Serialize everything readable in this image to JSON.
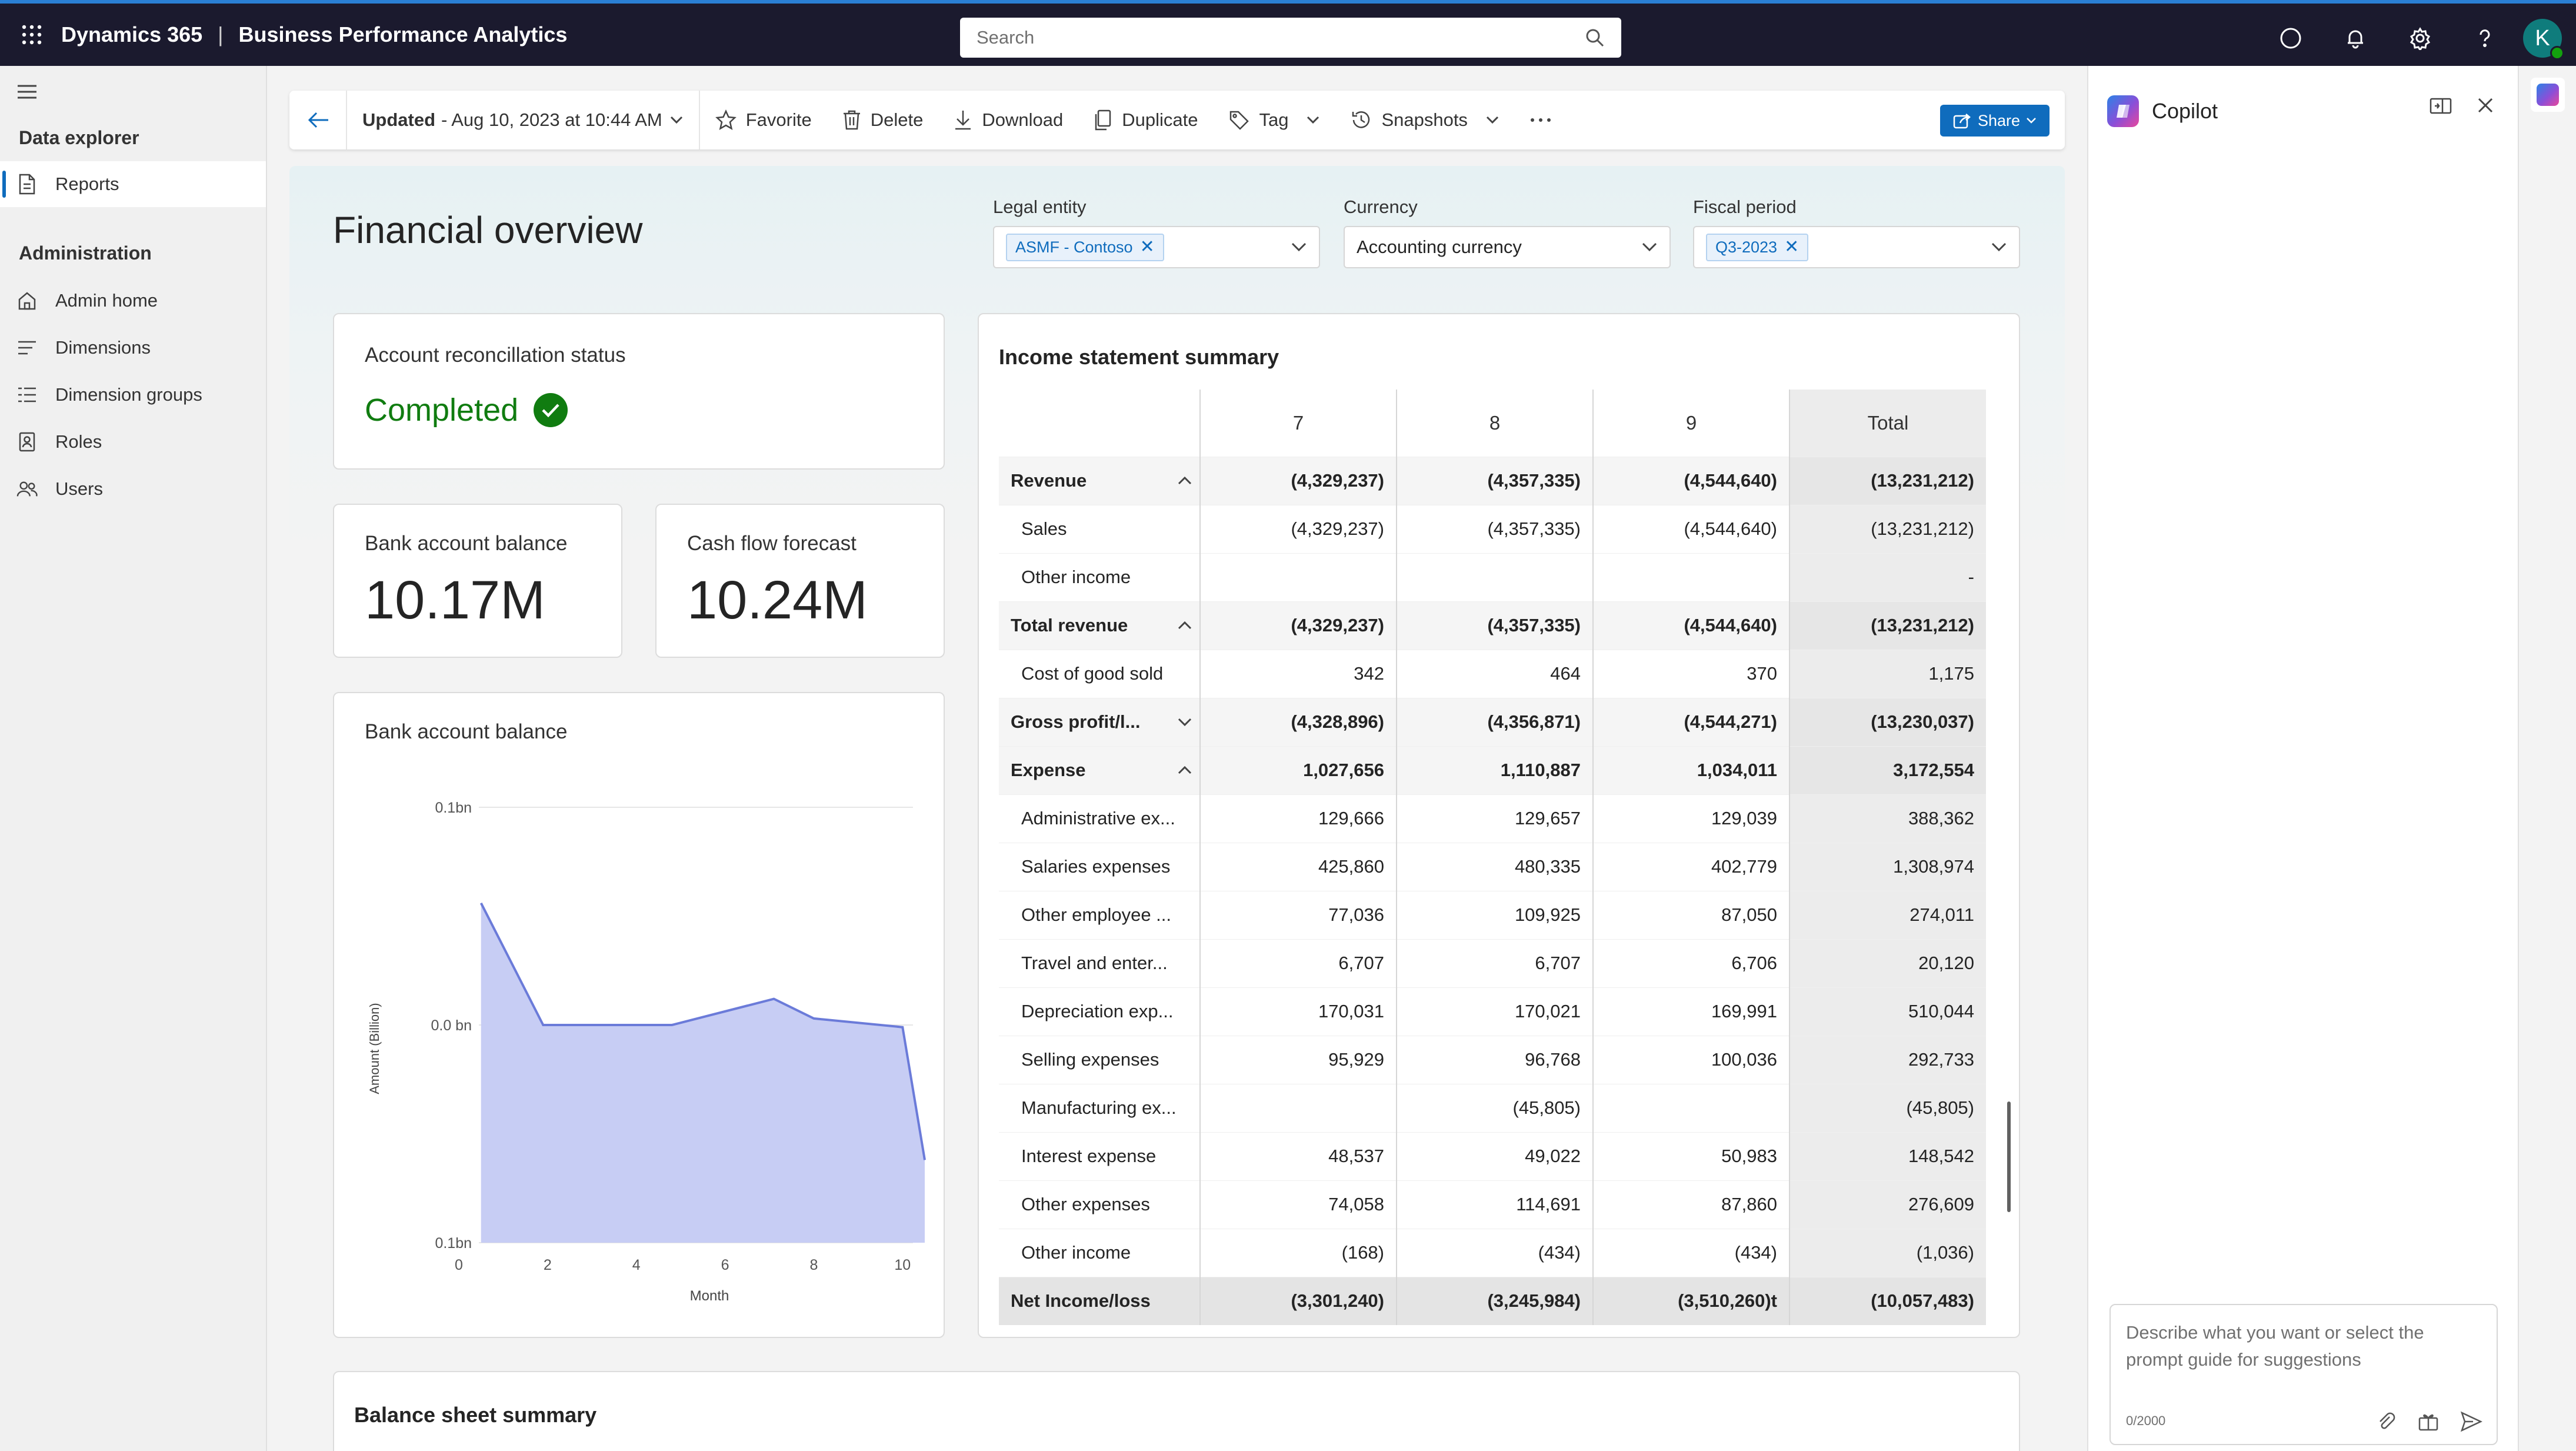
{
  "topbar": {
    "app_name": "Dynamics 365",
    "module_name": "Business Performance Analytics",
    "search_placeholder": "Search",
    "avatar_initial": "K"
  },
  "leftnav": {
    "section1": "Data explorer",
    "items1": [
      {
        "label": "Reports",
        "icon": "report-icon",
        "selected": true
      }
    ],
    "section2": "Administration",
    "items2": [
      {
        "label": "Admin home",
        "icon": "home-icon"
      },
      {
        "label": "Dimensions",
        "icon": "dimensions-icon"
      },
      {
        "label": "Dimension groups",
        "icon": "dimension-groups-icon"
      },
      {
        "label": "Roles",
        "icon": "roles-icon"
      },
      {
        "label": "Users",
        "icon": "users-icon"
      }
    ]
  },
  "cmdbar": {
    "updated_label": "Updated",
    "updated_value": "- Aug 10, 2023 at 10:44 AM",
    "favorite": "Favorite",
    "delete": "Delete",
    "download": "Download",
    "duplicate": "Duplicate",
    "tag": "Tag",
    "snapshots": "Snapshots",
    "share": "Share"
  },
  "report": {
    "title": "Financial overview",
    "filters": {
      "legal_entity_label": "Legal entity",
      "legal_entity_chip": "ASMF - Contoso",
      "currency_label": "Currency",
      "currency_value": "Accounting currency",
      "fiscal_period_label": "Fiscal period",
      "fiscal_period_chip": "Q3-2023"
    },
    "recon": {
      "title": "Account reconcillation status",
      "status": "Completed"
    },
    "bank_balance": {
      "title": "Bank account balance",
      "value": "10.17M"
    },
    "cash_flow": {
      "title": "Cash flow forecast",
      "value": "10.24M"
    },
    "chart_title": "Bank account balance",
    "income": {
      "title": "Income statement summary",
      "headers": [
        "7",
        "8",
        "9",
        "Total"
      ],
      "rows": [
        {
          "label": "Revenue",
          "type": "group",
          "chev": "up",
          "v": [
            "(4,329,237)",
            "(4,357,335)",
            "(4,544,640)",
            "(13,231,212)"
          ]
        },
        {
          "label": "Sales",
          "type": "sub",
          "v": [
            "(4,329,237)",
            "(4,357,335)",
            "(4,544,640)",
            "(13,231,212)"
          ]
        },
        {
          "label": "Other income",
          "type": "sub",
          "v": [
            "",
            "",
            "",
            "-"
          ]
        },
        {
          "label": "Total revenue",
          "type": "group",
          "chev": "up",
          "v": [
            "(4,329,237)",
            "(4,357,335)",
            "(4,544,640)",
            "(13,231,212)"
          ]
        },
        {
          "label": "Cost of good sold",
          "type": "sub",
          "v": [
            "342",
            "464",
            "370",
            "1,175"
          ]
        },
        {
          "label": "Gross profit/l...",
          "type": "group",
          "chev": "down",
          "v": [
            "(4,328,896)",
            "(4,356,871)",
            "(4,544,271)",
            "(13,230,037)"
          ]
        },
        {
          "label": "Expense",
          "type": "group",
          "chev": "up",
          "v": [
            "1,027,656",
            "1,110,887",
            "1,034,011",
            "3,172,554"
          ]
        },
        {
          "label": "Administrative ex...",
          "type": "sub",
          "v": [
            "129,666",
            "129,657",
            "129,039",
            "388,362"
          ]
        },
        {
          "label": "Salaries expenses",
          "type": "sub",
          "v": [
            "425,860",
            "480,335",
            "402,779",
            "1,308,974"
          ]
        },
        {
          "label": "Other employee ...",
          "type": "sub",
          "v": [
            "77,036",
            "109,925",
            "87,050",
            "274,011"
          ]
        },
        {
          "label": "Travel and enter...",
          "type": "sub",
          "v": [
            "6,707",
            "6,707",
            "6,706",
            "20,120"
          ]
        },
        {
          "label": "Depreciation exp...",
          "type": "sub",
          "v": [
            "170,031",
            "170,021",
            "169,991",
            "510,044"
          ]
        },
        {
          "label": "Selling expenses",
          "type": "sub",
          "v": [
            "95,929",
            "96,768",
            "100,036",
            "292,733"
          ]
        },
        {
          "label": "Manufacturing ex...",
          "type": "sub",
          "v": [
            "",
            "(45,805)",
            "",
            "(45,805)"
          ]
        },
        {
          "label": "Interest expense",
          "type": "sub",
          "v": [
            "48,537",
            "49,022",
            "50,983",
            "148,542"
          ]
        },
        {
          "label": "Other expenses",
          "type": "sub",
          "v": [
            "74,058",
            "114,691",
            "87,860",
            "276,609"
          ]
        },
        {
          "label": "Other income",
          "type": "sub",
          "v": [
            "(168)",
            "(434)",
            "(434)",
            "(1,036)"
          ]
        },
        {
          "label": "Net Income/loss",
          "type": "net",
          "v": [
            "(3,301,240)",
            "(3,245,984)",
            "(3,510,260)t",
            "(10,057,483)"
          ]
        }
      ]
    },
    "balance_title": "Balance sheet summary"
  },
  "copilot": {
    "title": "Copilot",
    "placeholder": "Describe what you want or select the prompt guide for suggestions",
    "count": "0/2000"
  },
  "chart_data": {
    "type": "area",
    "title": "Bank account balance",
    "xlabel": "Month",
    "ylabel": "Amount (Billion)",
    "x_ticks": [
      0,
      2,
      4,
      6,
      8,
      10
    ],
    "y_tick_labels": [
      "0.1bn",
      "0.0 bn",
      "0.1bn"
    ],
    "xlim": [
      0,
      10.5
    ],
    "ylim": [
      -0.1,
      0.1
    ],
    "x": [
      0.5,
      1.9,
      4.8,
      7.1,
      8,
      10,
      10.5
    ],
    "y": [
      0.056,
      0.0,
      0.0,
      0.012,
      0.003,
      -0.001,
      -0.062
    ],
    "color": "#c7cdf4",
    "line_color": "#6b7bd9"
  }
}
